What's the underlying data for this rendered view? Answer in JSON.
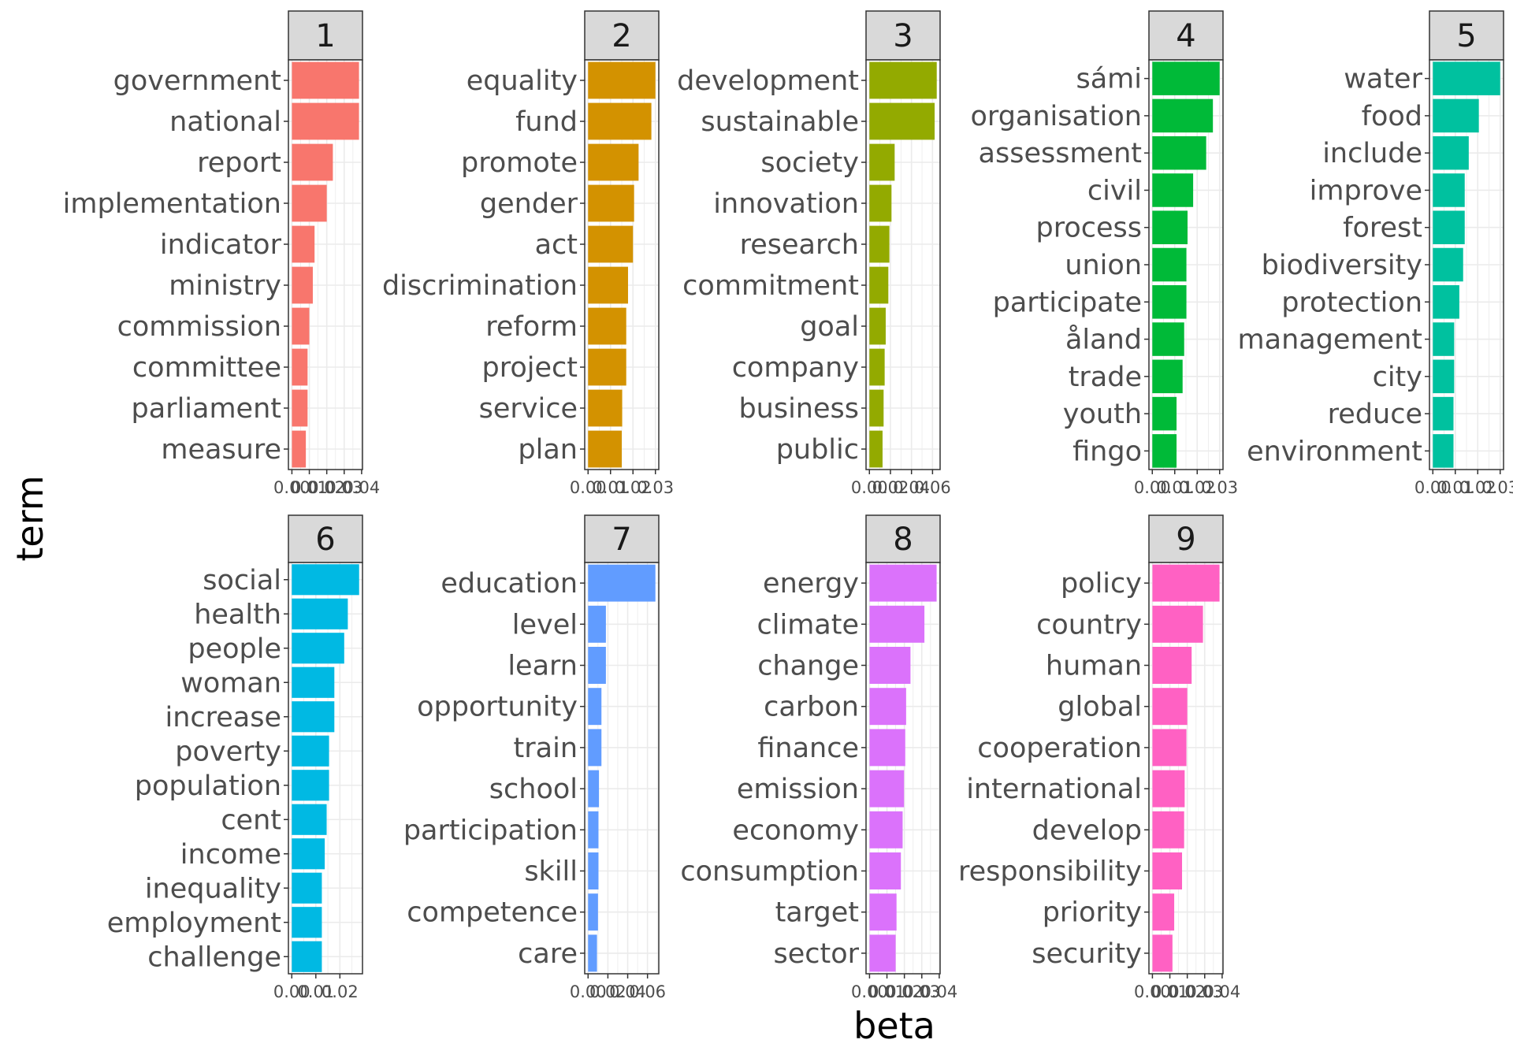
{
  "chart_data": {
    "type": "bar",
    "orientation": "horizontal",
    "xlabel": "beta",
    "ylabel": "term",
    "grid": true,
    "legend": "none",
    "facets": [
      {
        "label": "1",
        "color": "#F8766D",
        "terms": [
          "government",
          "national",
          "report",
          "implementation",
          "indicator",
          "ministry",
          "commission",
          "committee",
          "parliament",
          "measure"
        ],
        "values": [
          0.0385,
          0.0385,
          0.0235,
          0.02,
          0.013,
          0.012,
          0.01,
          0.009,
          0.009,
          0.008
        ],
        "xlim": [
          -0.002,
          0.0405
        ],
        "ticks": [
          0.0,
          0.01,
          0.02,
          0.03,
          0.04
        ],
        "tick_labels": [
          "0.00",
          "0.01",
          "0.02",
          "0.03",
          "0.04"
        ]
      },
      {
        "label": "2",
        "color": "#D39200",
        "terms": [
          "equality",
          "fund",
          "promote",
          "gender",
          "act",
          "discrimination",
          "reform",
          "project",
          "service",
          "plan"
        ],
        "values": [
          0.03,
          0.0282,
          0.0225,
          0.0205,
          0.02,
          0.0178,
          0.017,
          0.017,
          0.0152,
          0.015
        ],
        "xlim": [
          -0.0015,
          0.0315
        ],
        "ticks": [
          0.0,
          0.01,
          0.02,
          0.03
        ],
        "tick_labels": [
          "0.00",
          "0.01",
          "0.02",
          "0.03"
        ]
      },
      {
        "label": "3",
        "color": "#93AA00",
        "terms": [
          "development",
          "sustainable",
          "society",
          "innovation",
          "research",
          "commitment",
          "goal",
          "company",
          "business",
          "public"
        ],
        "values": [
          0.064,
          0.062,
          0.024,
          0.021,
          0.019,
          0.018,
          0.0155,
          0.0145,
          0.0135,
          0.0125
        ],
        "xlim": [
          -0.0032,
          0.0672
        ],
        "ticks": [
          0.0,
          0.02,
          0.04,
          0.06
        ],
        "tick_labels": [
          "0.00",
          "0.02",
          "0.04",
          "0.06"
        ]
      },
      {
        "label": "4",
        "color": "#00BA38",
        "terms": [
          "sámi",
          "organisation",
          "assessment",
          "civil",
          "process",
          "union",
          "participate",
          "åland",
          "trade",
          "youth",
          "fingo"
        ],
        "values": [
          0.03,
          0.027,
          0.024,
          0.0182,
          0.0157,
          0.0152,
          0.0152,
          0.0142,
          0.0135,
          0.0108,
          0.0108
        ],
        "xlim": [
          -0.0015,
          0.0315
        ],
        "ticks": [
          0.0,
          0.01,
          0.02,
          0.03
        ],
        "tick_labels": [
          "0.00",
          "0.01",
          "0.02",
          "0.03"
        ]
      },
      {
        "label": "5",
        "color": "#00C19F",
        "terms": [
          "water",
          "food",
          "include",
          "improve",
          "forest",
          "biodiversity",
          "protection",
          "management",
          "city",
          "reduce",
          "environment"
        ],
        "values": [
          0.03,
          0.0205,
          0.016,
          0.0142,
          0.0142,
          0.0135,
          0.0118,
          0.0095,
          0.0095,
          0.0092,
          0.0092
        ],
        "xlim": [
          -0.0015,
          0.0315
        ],
        "ticks": [
          0.0,
          0.01,
          0.02,
          0.03
        ],
        "tick_labels": [
          "0.00",
          "0.01",
          "0.02",
          "0.03"
        ]
      },
      {
        "label": "6",
        "color": "#00B9E3",
        "terms": [
          "social",
          "health",
          "people",
          "woman",
          "increase",
          "poverty",
          "population",
          "cent",
          "income",
          "inequality",
          "employment",
          "challenge"
        ],
        "values": [
          0.028,
          0.0233,
          0.0218,
          0.0177,
          0.0177,
          0.0155,
          0.0155,
          0.0145,
          0.0137,
          0.0125,
          0.0125,
          0.0125
        ],
        "xlim": [
          -0.0014,
          0.0294
        ],
        "ticks": [
          0.0,
          0.01,
          0.02
        ],
        "tick_labels": [
          "0.00",
          "0.01",
          "0.02"
        ]
      },
      {
        "label": "7",
        "color": "#619CFF",
        "terms": [
          "education",
          "level",
          "learn",
          "opportunity",
          "train",
          "school",
          "participation",
          "skill",
          "competence",
          "care"
        ],
        "values": [
          0.068,
          0.018,
          0.018,
          0.0135,
          0.0135,
          0.011,
          0.0105,
          0.0105,
          0.01,
          0.009
        ],
        "xlim": [
          -0.0034,
          0.0714
        ],
        "ticks": [
          0.0,
          0.02,
          0.04,
          0.06
        ],
        "tick_labels": [
          "0.00",
          "0.02",
          "0.04",
          "0.06"
        ]
      },
      {
        "label": "8",
        "color": "#DB72FB",
        "terms": [
          "energy",
          "climate",
          "change",
          "carbon",
          "finance",
          "emission",
          "economy",
          "consumption",
          "target",
          "sector"
        ],
        "values": [
          0.0385,
          0.0315,
          0.0235,
          0.021,
          0.0205,
          0.0198,
          0.019,
          0.018,
          0.0155,
          0.015
        ],
        "xlim": [
          -0.002,
          0.0405
        ],
        "ticks": [
          0.0,
          0.01,
          0.02,
          0.03,
          0.04
        ],
        "tick_labels": [
          "0.00",
          "0.01",
          "0.02",
          "0.03",
          "0.04"
        ]
      },
      {
        "label": "9",
        "color": "#FF61C3",
        "terms": [
          "policy",
          "country",
          "human",
          "global",
          "cooperation",
          "international",
          "develop",
          "responsibility",
          "priority",
          "security"
        ],
        "values": [
          0.0385,
          0.029,
          0.0225,
          0.02,
          0.0195,
          0.0185,
          0.0182,
          0.017,
          0.0125,
          0.0115
        ],
        "xlim": [
          -0.002,
          0.0405
        ],
        "ticks": [
          0.0,
          0.01,
          0.02,
          0.03,
          0.04
        ],
        "tick_labels": [
          "0.00",
          "0.01",
          "0.02",
          "0.03",
          "0.04"
        ]
      }
    ]
  }
}
